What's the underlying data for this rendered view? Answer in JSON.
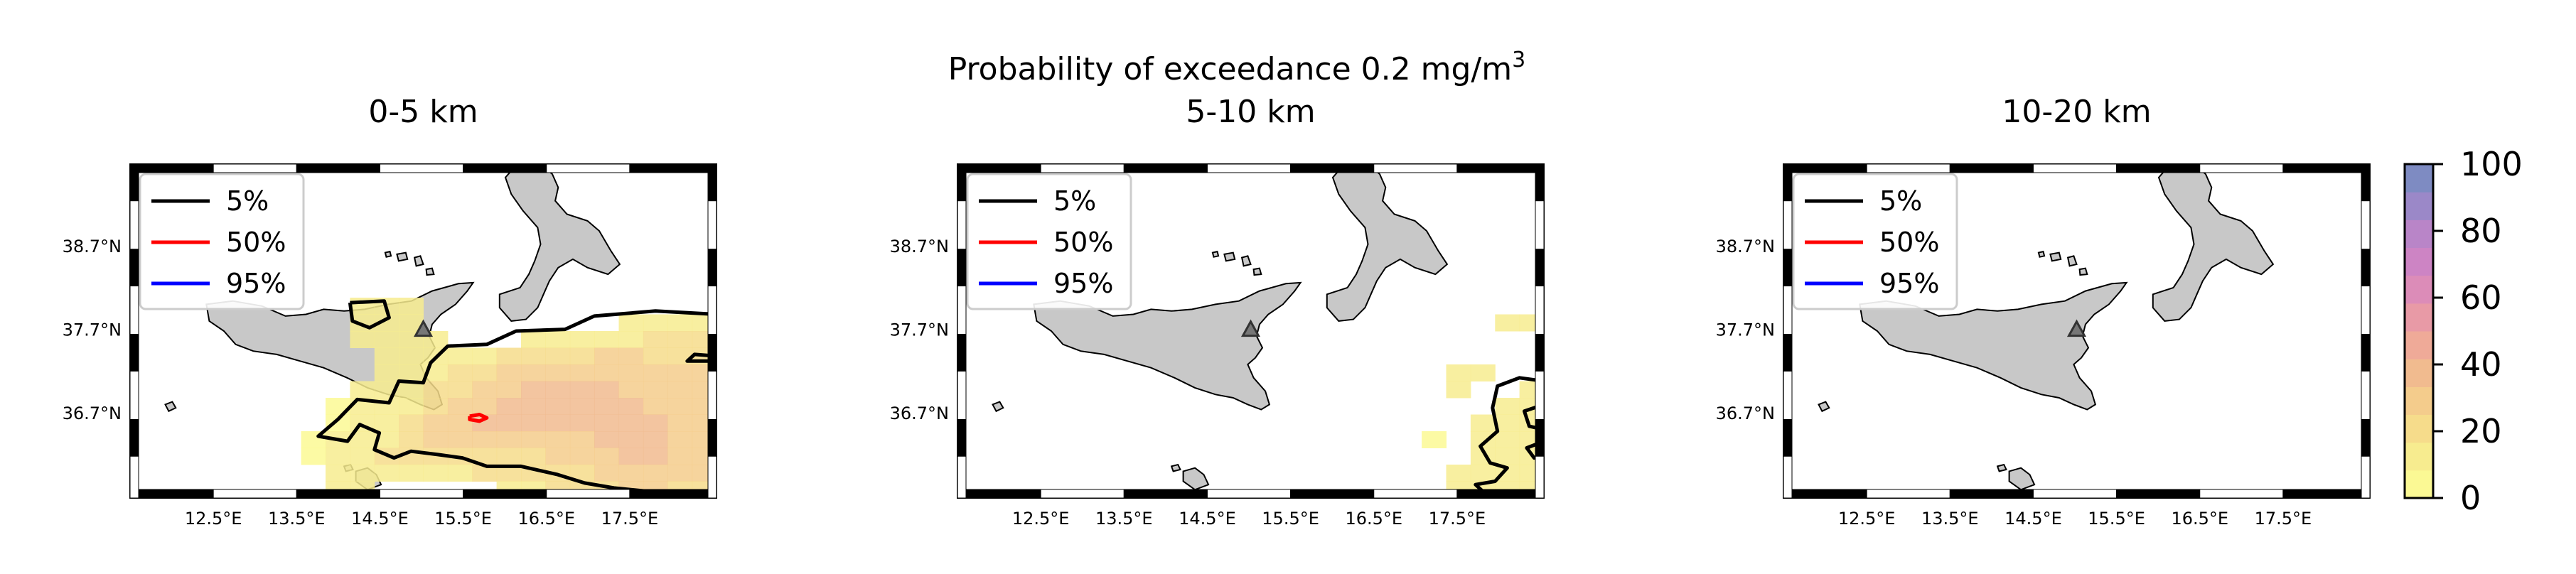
{
  "figure": {
    "suptitle_main": "Probability of exceedance 0.2 mg/m",
    "suptitle_sup": "3"
  },
  "panels": [
    {
      "title": "0-5 km",
      "cells": [
        [
          0,
          0,
          0,
          0,
          0,
          0,
          0,
          0,
          0,
          0,
          0,
          0,
          0,
          0,
          0,
          0,
          0,
          0,
          0,
          0,
          0,
          0,
          0,
          0
        ],
        [
          0,
          0,
          0,
          0,
          0,
          0,
          0,
          0,
          0,
          0,
          0,
          0,
          0,
          0,
          0,
          0,
          0,
          0,
          0,
          0,
          0,
          0,
          0,
          0
        ],
        [
          0,
          0,
          0,
          0,
          0,
          0,
          0,
          0,
          0,
          0,
          0,
          0,
          0,
          0,
          0,
          0,
          0,
          0,
          0,
          0,
          0,
          0,
          0,
          0
        ],
        [
          0,
          0,
          0,
          0,
          0,
          0,
          0,
          0,
          0,
          0,
          0,
          0,
          0,
          0,
          0,
          0,
          0,
          0,
          0,
          0,
          0,
          0,
          0,
          0
        ],
        [
          0,
          0,
          0,
          0,
          0,
          0,
          0,
          0,
          0,
          0,
          0,
          0,
          0,
          0,
          0,
          0,
          0,
          0,
          0,
          0,
          0,
          0,
          0,
          0
        ],
        [
          0,
          0,
          0,
          0,
          0,
          0,
          0,
          0,
          0,
          0,
          0,
          0,
          0,
          0,
          0,
          0,
          0,
          0,
          0,
          0,
          0,
          0,
          0,
          0
        ],
        [
          0,
          0,
          0,
          0,
          0,
          0,
          0,
          0,
          0,
          0,
          0,
          0,
          0,
          0,
          0,
          0,
          0,
          0,
          0,
          0,
          0,
          0,
          0,
          0
        ],
        [
          0,
          0,
          0,
          0,
          0,
          0,
          0,
          0,
          0,
          0,
          0,
          0,
          0,
          0,
          0,
          0,
          0,
          0,
          0,
          0,
          0,
          0,
          0,
          0
        ],
        [
          0,
          0,
          0,
          0,
          0,
          0,
          0,
          0,
          0,
          10,
          10,
          10,
          0,
          0,
          0,
          0,
          0,
          0,
          0,
          0,
          0,
          0,
          0,
          0
        ],
        [
          0,
          0,
          0,
          0,
          0,
          0,
          0,
          0,
          0,
          10,
          12,
          12,
          0,
          0,
          0,
          0,
          0,
          0,
          0,
          0,
          12,
          12,
          12,
          12
        ],
        [
          0,
          0,
          0,
          0,
          0,
          0,
          0,
          0,
          0,
          10,
          10,
          12,
          12,
          0,
          0,
          0,
          10,
          12,
          14,
          16,
          16,
          18,
          18,
          18
        ],
        [
          0,
          0,
          0,
          0,
          0,
          0,
          0,
          0,
          0,
          0,
          10,
          12,
          12,
          14,
          16,
          18,
          22,
          24,
          24,
          26,
          26,
          24,
          22,
          22
        ],
        [
          0,
          0,
          0,
          0,
          0,
          0,
          0,
          0,
          0,
          0,
          10,
          12,
          14,
          18,
          22,
          26,
          28,
          30,
          32,
          30,
          30,
          28,
          26,
          26
        ],
        [
          0,
          0,
          0,
          0,
          0,
          0,
          0,
          0,
          0,
          10,
          12,
          14,
          18,
          24,
          28,
          32,
          34,
          36,
          38,
          34,
          32,
          30,
          28,
          26
        ],
        [
          0,
          0,
          0,
          0,
          0,
          0,
          0,
          0,
          8,
          10,
          12,
          16,
          22,
          28,
          32,
          36,
          40,
          40,
          38,
          38,
          36,
          32,
          30,
          28
        ],
        [
          0,
          0,
          0,
          0,
          0,
          0,
          0,
          0,
          8,
          10,
          14,
          20,
          26,
          30,
          34,
          38,
          38,
          36,
          36,
          40,
          38,
          34,
          30,
          28
        ],
        [
          0,
          0,
          0,
          0,
          0,
          0,
          0,
          8,
          10,
          12,
          16,
          22,
          26,
          28,
          30,
          32,
          30,
          30,
          32,
          36,
          38,
          36,
          32,
          30
        ],
        [
          0,
          0,
          0,
          0,
          0,
          0,
          0,
          8,
          10,
          14,
          18,
          20,
          22,
          22,
          22,
          22,
          24,
          26,
          28,
          32,
          34,
          34,
          30,
          28
        ],
        [
          0,
          0,
          0,
          0,
          0,
          0,
          0,
          0,
          10,
          12,
          16,
          16,
          16,
          16,
          18,
          18,
          20,
          22,
          24,
          28,
          30,
          30,
          28,
          26
        ],
        [
          0,
          0,
          0,
          0,
          0,
          0,
          0,
          0,
          10,
          10,
          0,
          0,
          0,
          0,
          0,
          14,
          16,
          18,
          22,
          24,
          26,
          26,
          24,
          22
        ]
      ],
      "contours": [
        {
          "level": "5%",
          "color": "#000000",
          "points": [
            [
              9.0,
              8.3
            ],
            [
              10.4,
              8.2
            ],
            [
              10.6,
              9.2
            ],
            [
              9.8,
              9.8
            ],
            [
              9.1,
              9.4
            ],
            [
              9.0,
              8.3
            ]
          ]
        },
        {
          "level": "5%",
          "color": "#000000",
          "points": [
            [
              24,
              9.0
            ],
            [
              21.5,
              8.8
            ],
            [
              19.0,
              9.1
            ],
            [
              17.8,
              9.9
            ],
            [
              15.8,
              10.0
            ],
            [
              14.6,
              10.8
            ],
            [
              13.0,
              10.9
            ],
            [
              12.3,
              11.9
            ],
            [
              12.0,
              13.1
            ],
            [
              11.0,
              13.0
            ],
            [
              10.6,
              14.3
            ],
            [
              9.3,
              14.1
            ],
            [
              8.5,
              15.3
            ],
            [
              7.7,
              16.3
            ],
            [
              8.9,
              16.6
            ],
            [
              9.4,
              15.6
            ],
            [
              10.2,
              16.1
            ],
            [
              10.0,
              17.1
            ],
            [
              10.8,
              17.6
            ],
            [
              11.5,
              17.2
            ],
            [
              12.6,
              17.4
            ],
            [
              13.6,
              17.6
            ],
            [
              14.6,
              18.1
            ],
            [
              16.0,
              18.1
            ],
            [
              17.5,
              18.6
            ],
            [
              18.6,
              19.1
            ],
            [
              19.8,
              19.4
            ],
            [
              21.2,
              19.6
            ],
            [
              22.4,
              19.9
            ],
            [
              24,
              20
            ]
          ]
        },
        {
          "level": "5%",
          "color": "#000000",
          "points": [
            [
              24,
              11.5
            ],
            [
              23.1,
              11.4
            ],
            [
              22.8,
              11.8
            ],
            [
              24,
              11.8
            ]
          ]
        },
        {
          "level": "50%",
          "color": "#ff0000",
          "points": [
            [
              13.9,
              15.1
            ],
            [
              14.3,
              15.0
            ],
            [
              14.6,
              15.2
            ],
            [
              14.3,
              15.4
            ],
            [
              13.9,
              15.3
            ],
            [
              13.9,
              15.1
            ]
          ]
        }
      ]
    },
    {
      "title": "5-10 km",
      "cells": [
        [
          0,
          0,
          0,
          0,
          0,
          0,
          0,
          0,
          0,
          0,
          0,
          0,
          0,
          0,
          0,
          0,
          0,
          0,
          0,
          0,
          0,
          0,
          0,
          0
        ],
        [
          0,
          0,
          0,
          0,
          0,
          0,
          0,
          0,
          0,
          0,
          0,
          0,
          0,
          0,
          0,
          0,
          0,
          0,
          0,
          0,
          0,
          0,
          0,
          0
        ],
        [
          0,
          0,
          0,
          0,
          0,
          0,
          0,
          0,
          0,
          0,
          0,
          0,
          0,
          0,
          0,
          0,
          0,
          0,
          0,
          0,
          0,
          0,
          0,
          0
        ],
        [
          0,
          0,
          0,
          0,
          0,
          0,
          0,
          0,
          0,
          0,
          0,
          0,
          0,
          0,
          0,
          0,
          0,
          0,
          0,
          0,
          0,
          0,
          0,
          0
        ],
        [
          0,
          0,
          0,
          0,
          0,
          0,
          0,
          0,
          0,
          0,
          0,
          0,
          0,
          0,
          0,
          0,
          0,
          0,
          0,
          0,
          0,
          0,
          0,
          0
        ],
        [
          0,
          0,
          0,
          0,
          0,
          0,
          0,
          0,
          0,
          0,
          0,
          0,
          0,
          0,
          0,
          0,
          0,
          0,
          0,
          0,
          0,
          0,
          0,
          0
        ],
        [
          0,
          0,
          0,
          0,
          0,
          0,
          0,
          0,
          0,
          0,
          0,
          0,
          0,
          0,
          0,
          0,
          0,
          0,
          0,
          0,
          0,
          0,
          0,
          0
        ],
        [
          0,
          0,
          0,
          0,
          0,
          0,
          0,
          0,
          0,
          0,
          0,
          0,
          0,
          0,
          0,
          0,
          0,
          0,
          0,
          0,
          0,
          0,
          0,
          0
        ],
        [
          0,
          0,
          0,
          0,
          0,
          0,
          0,
          0,
          0,
          0,
          0,
          0,
          0,
          0,
          0,
          0,
          0,
          0,
          0,
          0,
          0,
          0,
          0,
          0
        ],
        [
          0,
          0,
          0,
          0,
          0,
          0,
          0,
          0,
          0,
          0,
          0,
          0,
          0,
          0,
          0,
          0,
          0,
          0,
          0,
          0,
          0,
          0,
          10,
          10
        ],
        [
          0,
          0,
          0,
          0,
          0,
          0,
          0,
          0,
          0,
          0,
          0,
          0,
          0,
          0,
          0,
          0,
          0,
          0,
          0,
          0,
          0,
          0,
          0,
          0
        ],
        [
          0,
          0,
          0,
          0,
          0,
          0,
          0,
          0,
          0,
          0,
          0,
          0,
          0,
          0,
          0,
          0,
          0,
          0,
          0,
          0,
          0,
          0,
          0,
          0
        ],
        [
          0,
          0,
          0,
          0,
          0,
          0,
          0,
          0,
          0,
          0,
          0,
          0,
          0,
          0,
          0,
          0,
          0,
          0,
          0,
          0,
          10,
          10,
          0,
          0
        ],
        [
          0,
          0,
          0,
          0,
          0,
          0,
          0,
          0,
          0,
          0,
          0,
          0,
          0,
          0,
          0,
          0,
          0,
          0,
          0,
          0,
          10,
          0,
          0,
          10
        ],
        [
          0,
          0,
          0,
          0,
          0,
          0,
          0,
          0,
          0,
          0,
          0,
          0,
          0,
          0,
          0,
          0,
          0,
          0,
          0,
          0,
          0,
          0,
          10,
          12
        ],
        [
          0,
          0,
          0,
          0,
          0,
          0,
          0,
          0,
          0,
          0,
          0,
          0,
          0,
          0,
          0,
          0,
          0,
          0,
          0,
          0,
          0,
          10,
          12,
          12
        ],
        [
          0,
          0,
          0,
          0,
          0,
          0,
          0,
          0,
          0,
          0,
          0,
          0,
          0,
          0,
          0,
          0,
          0,
          0,
          0,
          8,
          0,
          10,
          12,
          12
        ],
        [
          0,
          0,
          0,
          0,
          0,
          0,
          0,
          0,
          0,
          0,
          0,
          0,
          0,
          0,
          0,
          0,
          0,
          0,
          0,
          0,
          0,
          10,
          12,
          10
        ],
        [
          0,
          0,
          0,
          0,
          0,
          0,
          0,
          0,
          0,
          0,
          0,
          0,
          0,
          0,
          0,
          0,
          0,
          0,
          0,
          0,
          10,
          10,
          10,
          10
        ],
        [
          0,
          0,
          0,
          0,
          0,
          0,
          0,
          0,
          0,
          0,
          0,
          0,
          0,
          0,
          0,
          0,
          0,
          0,
          0,
          0,
          10,
          10,
          10,
          10
        ]
      ],
      "contours": [
        {
          "level": "5%",
          "color": "#000000",
          "points": [
            [
              24,
              13.0
            ],
            [
              23.0,
              12.8
            ],
            [
              22.1,
              13.3
            ],
            [
              21.9,
              14.6
            ],
            [
              22.1,
              16.0
            ],
            [
              21.4,
              16.9
            ],
            [
              21.8,
              17.9
            ],
            [
              22.5,
              18.2
            ],
            [
              22.0,
              19.0
            ],
            [
              21.2,
              19.2
            ],
            [
              21.8,
              20.0
            ]
          ]
        },
        {
          "level": "5%",
          "color": "#000000",
          "points": [
            [
              24,
              14.4
            ],
            [
              23.2,
              14.8
            ],
            [
              23.4,
              15.7
            ],
            [
              24,
              15.9
            ]
          ]
        },
        {
          "level": "5%",
          "color": "#000000",
          "points": [
            [
              24,
              16.6
            ],
            [
              23.3,
              17.0
            ],
            [
              23.6,
              17.6
            ],
            [
              24,
              17.4
            ]
          ]
        }
      ]
    },
    {
      "title": "10-20 km",
      "cells": [],
      "contours": []
    }
  ],
  "legend": [
    {
      "label": "5%",
      "color": "#000000"
    },
    {
      "label": "50%",
      "color": "#ff0000"
    },
    {
      "label": "95%",
      "color": "#0000ff"
    }
  ],
  "axes": {
    "x_ticks": [
      "12.5°E",
      "13.5°E",
      "14.5°E",
      "15.5°E",
      "16.5°E",
      "17.5°E"
    ],
    "y_ticks": [
      "38.7°N",
      "37.7°N",
      "36.7°N"
    ]
  },
  "colorbar": {
    "min": 0,
    "max": 100,
    "ticks": [
      "0",
      "20",
      "40",
      "60",
      "80",
      "100"
    ],
    "colors": [
      "#fbf994",
      "#f7ec8f",
      "#f6dc8b",
      "#f4cc8c",
      "#f1bb8f",
      "#efaa98",
      "#e89aa6",
      "#dc8cb8",
      "#cd84c4",
      "#b985c8",
      "#9b88c8",
      "#7e8bc2"
    ]
  },
  "volcano": {
    "name": "Etna",
    "color": "#555555"
  }
}
